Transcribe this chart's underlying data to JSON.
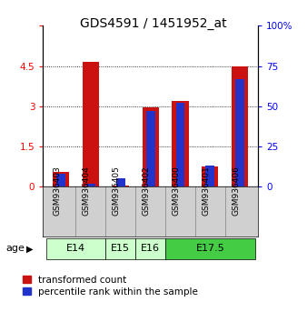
{
  "title": "GDS4591 / 1451952_at",
  "samples": [
    "GSM936403",
    "GSM936404",
    "GSM936405",
    "GSM936402",
    "GSM936400",
    "GSM936401",
    "GSM936406"
  ],
  "transformed_count": [
    0.55,
    4.65,
    0.05,
    2.95,
    3.2,
    0.75,
    4.5
  ],
  "percentile_rank": [
    8,
    2,
    5,
    47,
    52,
    13,
    67
  ],
  "age_group_spans": [
    {
      "label": "E14",
      "start": 0,
      "end": 2,
      "color": "#ccffcc"
    },
    {
      "label": "E15",
      "start": 2,
      "end": 3,
      "color": "#ccffcc"
    },
    {
      "label": "E16",
      "start": 3,
      "end": 4,
      "color": "#ccffcc"
    },
    {
      "label": "E17.5",
      "start": 4,
      "end": 7,
      "color": "#44cc44"
    }
  ],
  "ylim_left": [
    0,
    6
  ],
  "ylim_right": [
    0,
    100
  ],
  "yticks_left": [
    0,
    1.5,
    3,
    4.5,
    6
  ],
  "yticks_right": [
    0,
    25,
    50,
    75,
    100
  ],
  "bar_color_red": "#cc1111",
  "bar_color_blue": "#2233cc",
  "bar_width": 0.25,
  "background_color": "#ffffff",
  "title_fontsize": 10,
  "tick_fontsize": 7.5,
  "legend_fontsize": 7.5
}
